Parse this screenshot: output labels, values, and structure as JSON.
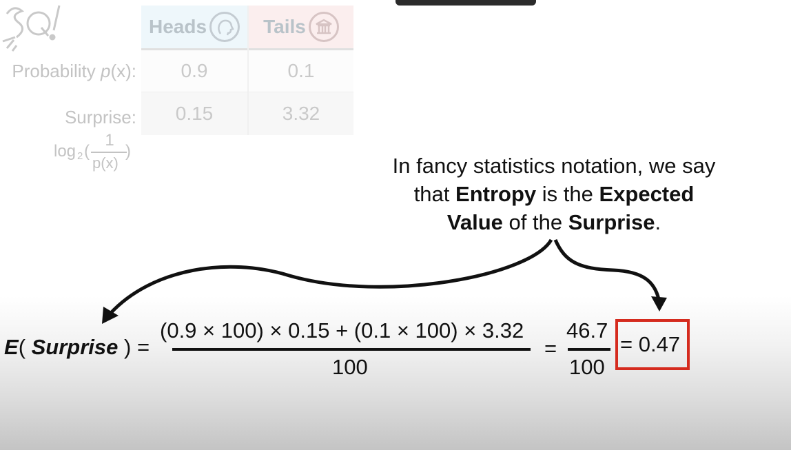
{
  "table": {
    "headers": [
      "Heads",
      "Tails"
    ],
    "header_icons": [
      "face-icon",
      "building-icon"
    ],
    "rows": [
      {
        "label_prefix": "Probability ",
        "label_var": "p",
        "label_suffix": "(x):",
        "values": [
          "0.9",
          "0.1"
        ]
      },
      {
        "label": "Surprise:",
        "values": [
          "0.15",
          "3.32"
        ]
      }
    ],
    "surprise_formula": {
      "log": "log",
      "base": "2",
      "open": "(",
      "numerator": "1",
      "denominator": "p(x)",
      "close": ")"
    }
  },
  "annotation": {
    "line1": "In fancy statistics notation, we say",
    "line2_pre": "that ",
    "line2_b1": "Entropy",
    "line2_mid": " is the ",
    "line2_b2": "Expected",
    "line3_b1": "Value",
    "line3_mid": " of the ",
    "line3_b2": "Surprise",
    "line3_end": "."
  },
  "equation": {
    "lhs_E": "E",
    "lhs_open": "( ",
    "lhs_arg": "Surprise",
    "lhs_close": " ) =",
    "numerator": "(0.9 × 100) × 0.15 + (0.1 × 100) × 3.32",
    "denominator": "100",
    "eq2": "=",
    "frac2_num": "46.7",
    "frac2_den": "100",
    "result": "= 0.47"
  },
  "colors": {
    "highlight_box": "#d52b1e",
    "heads_cell": "#eef7fb",
    "tails_cell": "#fbeeee"
  }
}
